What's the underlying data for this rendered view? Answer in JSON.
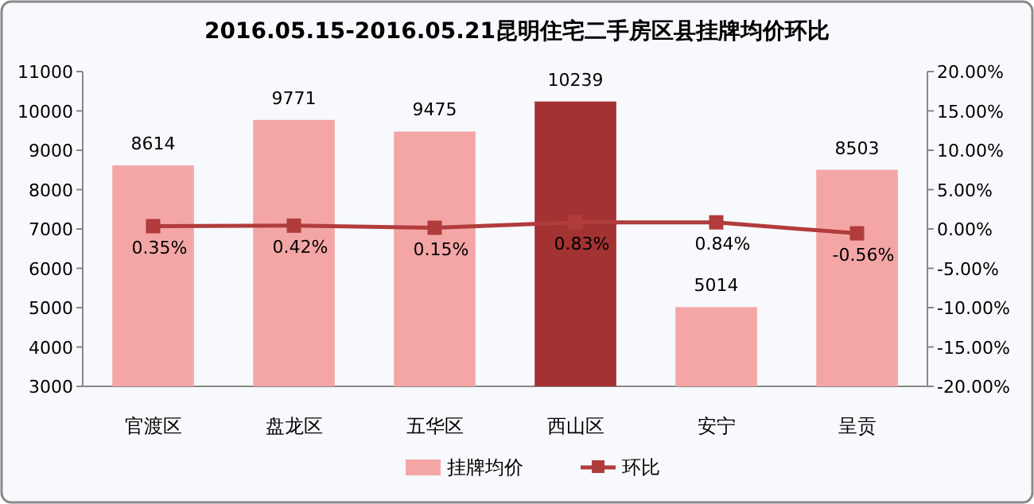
{
  "chart_data": {
    "type": "bar",
    "title": "2016.05.15-2016.05.21昆明住宅二手房区县挂牌均价环比",
    "categories": [
      "官渡区",
      "盘龙区",
      "五华区",
      "西山区",
      "安宁",
      "呈贡"
    ],
    "series": [
      {
        "name": "挂牌均价",
        "color": "#f4a6a6",
        "colors": [
          "#f4a6a6",
          "#f4a6a6",
          "#f4a6a6",
          "#a33232",
          "#f4a6a6",
          "#f4a6a6"
        ],
        "values": [
          8614,
          9771,
          9475,
          10239,
          5014,
          8503
        ],
        "value_labels": [
          "8614",
          "9771",
          "9475",
          "10239",
          "5014",
          "8503"
        ]
      },
      {
        "name": "环比",
        "type": "line",
        "axis": "y2",
        "color": "#b13c3c",
        "marker": "square",
        "values": [
          0.35,
          0.42,
          0.15,
          0.83,
          0.84,
          -0.56
        ],
        "value_labels": [
          "0.35%",
          "0.42%",
          "0.15%",
          "0.83%",
          "0.84%",
          "-0.56%"
        ]
      }
    ],
    "ylim": [
      3000,
      11000
    ],
    "yticks": [
      3000,
      4000,
      5000,
      6000,
      7000,
      8000,
      9000,
      10000,
      11000
    ],
    "y2lim": [
      -20,
      20
    ],
    "y2ticks": [
      {
        "value": -20,
        "label": "-20.00%"
      },
      {
        "value": -15,
        "label": "-15.00%"
      },
      {
        "value": -10,
        "label": "-10.00%"
      },
      {
        "value": -5,
        "label": "-5.00%"
      },
      {
        "value": 0,
        "label": "0.00%"
      },
      {
        "value": 5,
        "label": "5.00%"
      },
      {
        "value": 10,
        "label": "10.00%"
      },
      {
        "value": 15,
        "label": "15.00%"
      },
      {
        "value": 20,
        "label": "20.00%"
      }
    ],
    "grid": false,
    "legend": "bottom"
  }
}
